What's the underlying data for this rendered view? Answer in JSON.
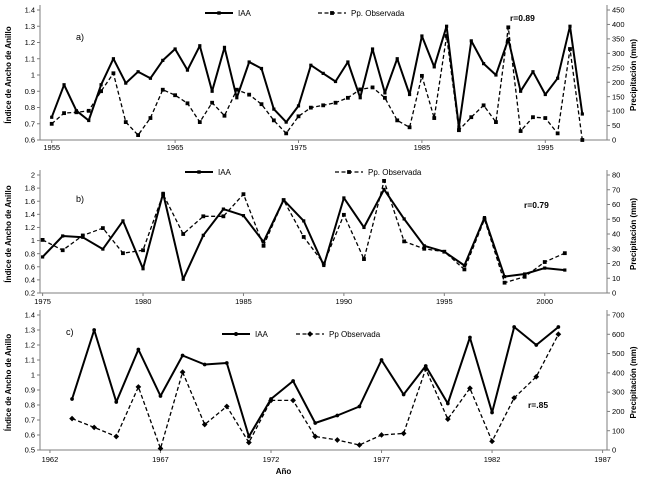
{
  "figure": {
    "background": "#ffffff",
    "text_color": "#000000",
    "axis_color": "#7f7f7f",
    "series_color": "#000000"
  },
  "chart_data": [
    {
      "id": "a",
      "type": "line",
      "panel_label": "a)",
      "correlation_label": "r=0.89",
      "x": {
        "label": "",
        "min": 1954.05,
        "max": 2000.0,
        "ticks": [
          1955,
          1965,
          1975,
          1985,
          1995
        ]
      },
      "left_axis": {
        "label": "Índice de Ancho de Anillo",
        "min": 0.6,
        "max": 1.4,
        "step": 0.1
      },
      "right_axis": {
        "label": "Precipitación (mm)",
        "min": 0,
        "max": 450,
        "step": 50
      },
      "years": [
        1955,
        1956,
        1957,
        1958,
        1959,
        1960,
        1961,
        1962,
        1963,
        1964,
        1965,
        1966,
        1967,
        1968,
        1969,
        1970,
        1971,
        1972,
        1973,
        1974,
        1975,
        1976,
        1977,
        1978,
        1979,
        1980,
        1981,
        1982,
        1983,
        1984,
        1985,
        1986,
        1987,
        1988,
        1989,
        1990,
        1991,
        1992,
        1993,
        1994,
        1995,
        1996,
        1997,
        1998
      ],
      "series": [
        {
          "name": "IAA",
          "axis": "left",
          "line": "solid",
          "marker": "square",
          "values": [
            0.74,
            0.94,
            0.78,
            0.72,
            0.94,
            1.1,
            0.95,
            1.02,
            0.98,
            1.09,
            1.16,
            1.03,
            1.18,
            0.9,
            1.17,
            0.86,
            1.08,
            1.04,
            0.79,
            0.71,
            0.81,
            1.06,
            1.01,
            0.96,
            1.08,
            0.86,
            1.16,
            0.89,
            1.1,
            0.88,
            1.24,
            1.05,
            1.3,
            0.68,
            1.21,
            1.07,
            1.0,
            1.22,
            0.9,
            1.02,
            0.88,
            0.98,
            1.3,
            0.76
          ]
        },
        {
          "name": "Pp. Observada",
          "axis": "right",
          "line": "dashed",
          "marker": "square",
          "values": [
            56,
            93,
            96,
            101,
            169,
            231,
            62,
            17,
            76,
            174,
            155,
            127,
            62,
            129,
            84,
            174,
            157,
            124,
            68,
            23,
            82,
            112,
            120,
            129,
            146,
            175,
            182,
            146,
            68,
            44,
            222,
            76,
            360,
            34,
            79,
            120,
            62,
            390,
            31,
            79,
            76,
            23,
            315,
            0
          ]
        }
      ]
    },
    {
      "id": "b",
      "type": "line",
      "panel_label": "b)",
      "correlation_label": "r=0.79",
      "x": {
        "label": "",
        "min": 1974.87,
        "max": 2003.1,
        "ticks": [
          1975,
          1980,
          1985,
          1990,
          1995,
          2000
        ]
      },
      "left_axis": {
        "label": "Índice de Ancho de Anillo",
        "min": 0.2,
        "max": 2.0,
        "step": 0.2
      },
      "right_axis": {
        "label": "Precipitación  (mm)",
        "min": 0,
        "max": 80,
        "step": 10
      },
      "years": [
        1975,
        1976,
        1977,
        1978,
        1979,
        1980,
        1981,
        1982,
        1983,
        1984,
        1985,
        1986,
        1987,
        1988,
        1989,
        1990,
        1991,
        1992,
        1993,
        1994,
        1995,
        1996,
        1997,
        1998,
        1999,
        2000,
        2001
      ],
      "series": [
        {
          "name": "IAA",
          "axis": "left",
          "line": "solid",
          "marker": "square",
          "values": [
            0.75,
            1.07,
            1.05,
            0.87,
            1.3,
            0.57,
            1.72,
            0.41,
            1.08,
            1.48,
            1.38,
            0.98,
            1.62,
            1.3,
            0.62,
            1.65,
            1.2,
            1.78,
            1.33,
            0.92,
            0.83,
            0.62,
            1.35,
            0.45,
            0.49,
            0.58,
            0.55
          ]
        },
        {
          "name": "Pp. Observada",
          "axis": "right",
          "line": "dashed",
          "marker": "square",
          "values": [
            36,
            29,
            39,
            44,
            27,
            29,
            67,
            40,
            52,
            52,
            67,
            32,
            63,
            38,
            20,
            53,
            23,
            76,
            35,
            30,
            28,
            16,
            50,
            7,
            11,
            21,
            27
          ]
        }
      ]
    },
    {
      "id": "c",
      "type": "line",
      "panel_label": "c)",
      "correlation_label": "r=.85",
      "x": {
        "label": "Año",
        "min": 1961.55,
        "max": 1987.2,
        "ticks": [
          1962,
          1967,
          1972,
          1977,
          1982,
          1987
        ]
      },
      "left_axis": {
        "label": "Índice de Ancho de Anillo",
        "min": 0.5,
        "max": 1.4,
        "step": 0.1
      },
      "right_axis": {
        "label": "Precipitación (mm)",
        "min": 0,
        "max": 700,
        "step": 100
      },
      "years": [
        1963,
        1964,
        1965,
        1966,
        1967,
        1968,
        1969,
        1970,
        1971,
        1972,
        1973,
        1974,
        1975,
        1976,
        1977,
        1978,
        1979,
        1980,
        1981,
        1982,
        1983,
        1984,
        1985
      ],
      "series": [
        {
          "name": "IAA",
          "axis": "left",
          "line": "solid",
          "marker": "circle",
          "values": [
            0.84,
            1.3,
            0.82,
            1.17,
            0.86,
            1.13,
            1.07,
            1.08,
            0.59,
            0.84,
            0.96,
            0.68,
            0.73,
            0.79,
            1.1,
            0.87,
            1.06,
            0.81,
            1.25,
            0.75,
            1.32,
            1.2,
            1.32
          ]
        },
        {
          "name": "Pp Observada",
          "axis": "right",
          "line": "dashed",
          "marker": "diamond",
          "values": [
            163,
            117,
            70,
            327,
            8,
            404,
            132,
            226,
            39,
            257,
            257,
            70,
            52,
            26,
            78,
            86,
            420,
            160,
            320,
            45,
            270,
            380,
            600
          ]
        }
      ]
    }
  ]
}
